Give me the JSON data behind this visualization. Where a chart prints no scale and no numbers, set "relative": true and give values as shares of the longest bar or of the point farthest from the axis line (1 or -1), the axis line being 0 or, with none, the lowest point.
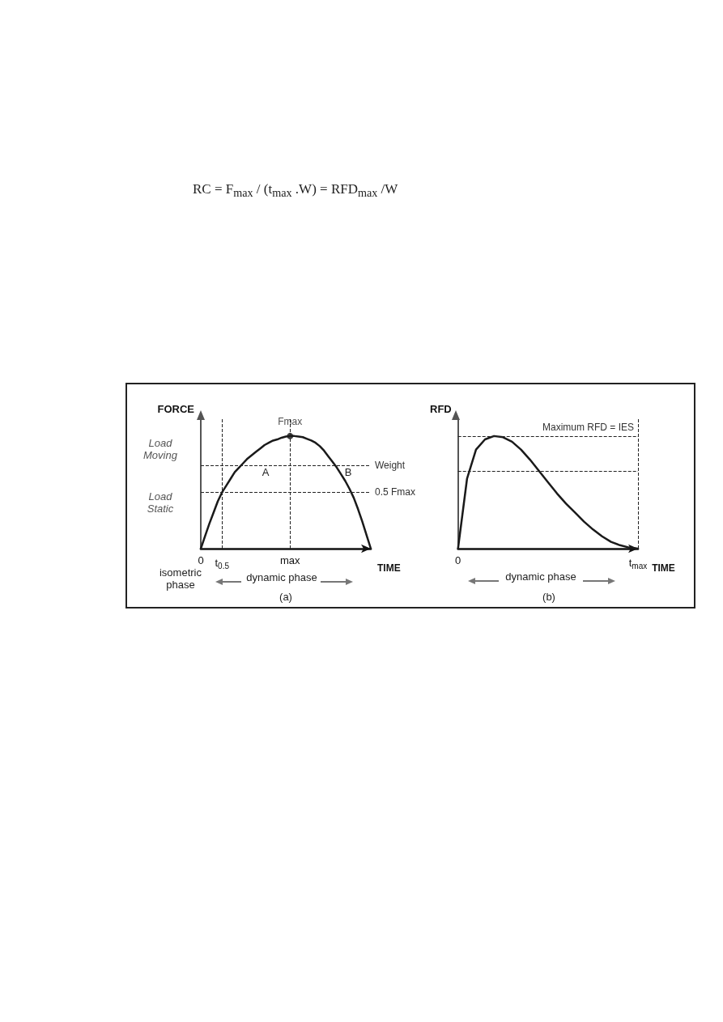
{
  "chart_data": [
    {
      "type": "line",
      "relative": true,
      "xlabel": "TIME",
      "ylabel": "FORCE",
      "categories": [
        "0",
        null,
        null,
        null,
        null,
        "t$_{0.5}$",
        null,
        null,
        null,
        null,
        null,
        null,
        null,
        null,
        null,
        null,
        null,
        null,
        null,
        null,
        null,
        "max",
        null,
        null,
        null,
        null,
        null,
        null,
        null,
        null,
        null,
        null,
        null,
        null,
        null,
        null,
        null,
        null,
        null,
        null,
        null
      ],
      "series": [
        {
          "color": "#1a1a1a",
          "values": [
            0,
            0.11,
            0.22,
            0.32,
            0.42,
            0.5,
            0.56,
            0.62,
            0.68,
            0.72,
            0.76,
            0.8,
            0.83,
            0.86,
            0.89,
            0.92,
            0.94,
            0.96,
            0.97,
            0.985,
            0.995,
            1.0,
            1.0,
            0.995,
            0.99,
            0.975,
            0.96,
            0.94,
            0.91,
            0.87,
            0.82,
            0.77,
            0.72,
            0.66,
            0.6,
            0.53,
            0.45,
            0.35,
            0.24,
            0.12,
            0
          ]
        }
      ],
      "ref_lines": [
        {
          "axis": "y",
          "value": 0.74,
          "label": "Weight",
          "line_style": "dashed"
        },
        {
          "axis": "y",
          "value": 0.5,
          "label": "0.5 Fmax",
          "line_style": "dashed"
        },
        {
          "axis": "x",
          "value": "t$_{0.5}$",
          "line_style": "dashed"
        },
        {
          "axis": "x",
          "value": "max",
          "line_style": "dashed"
        }
      ],
      "annotations": [
        "RC = F$_{max}$ / (t$_{max}$ .W) = RFD$_{max}$ /W",
        "Load Moving",
        "Load Static",
        "A",
        "B",
        "isometric phase",
        "dynamic phase",
        "(a)",
        {
          "text": "Fmax",
          "x": "max",
          "y": 1
        }
      ],
      "marker": "none",
      "line_style": "solid"
    },
    {
      "type": "line",
      "relative": true,
      "xlabel": "TIME",
      "ylabel": "RFD",
      "categories": [
        "0",
        null,
        null,
        null,
        null,
        null,
        null,
        null,
        null,
        null,
        null,
        null,
        null,
        null,
        null,
        null,
        null,
        null,
        null,
        null,
        "t$_{max}$"
      ],
      "series": [
        {
          "color": "#1a1a1a",
          "values": [
            0,
            0.62,
            0.88,
            0.97,
            1.0,
            0.99,
            0.95,
            0.88,
            0.79,
            0.69,
            0.59,
            0.49,
            0.4,
            0.32,
            0.24,
            0.17,
            0.11,
            0.06,
            0.03,
            0.01,
            0
          ]
        }
      ],
      "ref_lines": [
        {
          "axis": "y",
          "value": 1,
          "label": "Maximum RFD = IES",
          "line_style": "dashed"
        },
        {
          "axis": "y",
          "value": 0.69,
          "line_style": "dashed"
        },
        {
          "axis": "x",
          "value": "t$_{max}$",
          "line_style": "dashed"
        }
      ],
      "annotations": [
        "dynamic phase",
        "(b)"
      ],
      "marker": "none",
      "line_style": "solid"
    }
  ]
}
